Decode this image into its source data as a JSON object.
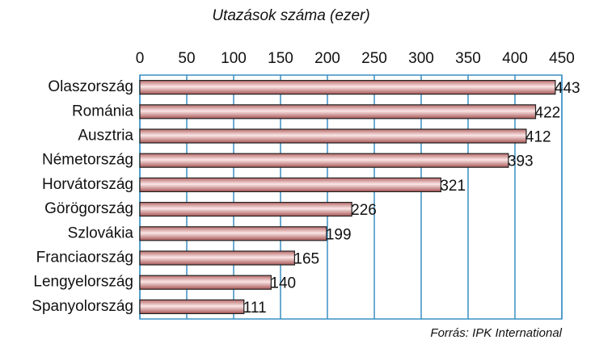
{
  "chart_data": {
    "type": "bar",
    "orientation": "horizontal",
    "title": "Utazások száma (ezer)",
    "source": "Forrás: IPK International",
    "categories": [
      "Olaszország",
      "Románia",
      "Ausztria",
      "Németország",
      "Horvátország",
      "Görögország",
      "Szlovákia",
      "Franciaország",
      "Lengyelország",
      "Spanyolország"
    ],
    "values": [
      443,
      422,
      412,
      393,
      321,
      226,
      199,
      165,
      140,
      111
    ],
    "color": "#e9b3b3",
    "xlim": [
      0,
      450
    ],
    "xticks": [
      0,
      50,
      100,
      150,
      200,
      250,
      300,
      350,
      400,
      450
    ],
    "grid": true
  }
}
